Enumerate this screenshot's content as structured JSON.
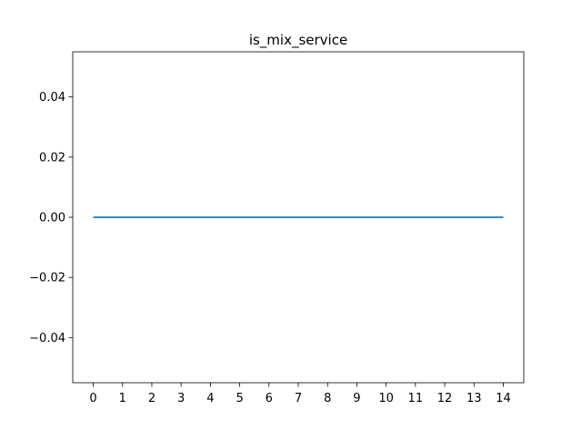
{
  "chart_data": {
    "type": "line",
    "title": "is_mix_service",
    "xlabel": "",
    "ylabel": "",
    "x": [
      0,
      1,
      2,
      3,
      4,
      5,
      6,
      7,
      8,
      9,
      10,
      11,
      12,
      13,
      14
    ],
    "series": [
      {
        "values": [
          0,
          0,
          0,
          0,
          0,
          0,
          0,
          0,
          0,
          0,
          0,
          0,
          0,
          0,
          0
        ],
        "color": "#1f77b4"
      }
    ],
    "xlim": [
      -0.7,
      14.7
    ],
    "ylim": [
      -0.055,
      0.055
    ],
    "x_ticks": [
      0,
      1,
      2,
      3,
      4,
      5,
      6,
      7,
      8,
      9,
      10,
      11,
      12,
      13,
      14
    ],
    "x_tick_labels": [
      "0",
      "1",
      "2",
      "3",
      "4",
      "5",
      "6",
      "7",
      "8",
      "9",
      "10",
      "11",
      "12",
      "13",
      "14"
    ],
    "y_ticks": [
      0.04,
      0.02,
      0.0,
      -0.02,
      -0.04
    ],
    "y_tick_labels": [
      "0.04",
      "0.02",
      "0.00",
      "−0.02",
      "−0.04"
    ],
    "grid": false,
    "legend": "none"
  }
}
